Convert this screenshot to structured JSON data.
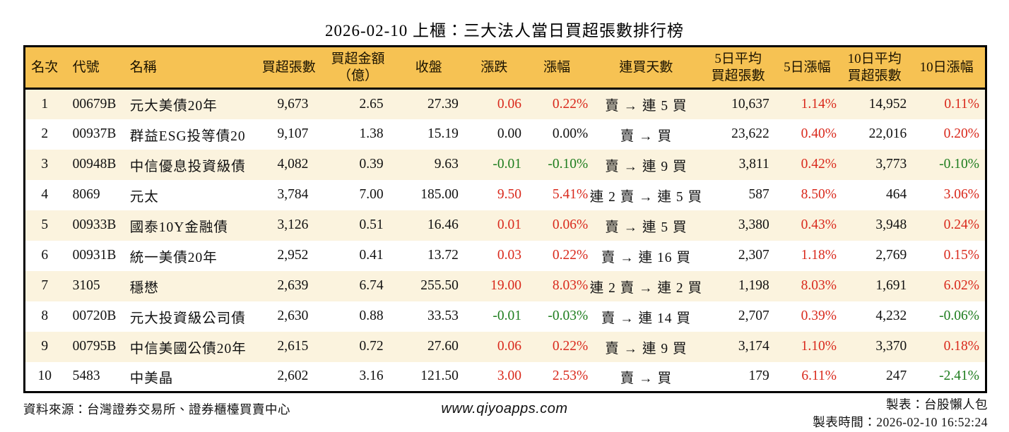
{
  "title": "2026-02-10 上櫃：三大法人當日買超張數排行榜",
  "colors": {
    "header_bg": "#F6C253",
    "row_alt_bg": "#FBF3DE",
    "up_red": "#D9291C",
    "down_green": "#1E7D1E",
    "text": "#111111",
    "border": "#000000"
  },
  "table": {
    "headers": [
      "名次",
      "代號",
      "名稱",
      "買超張數",
      "買超金額\n（億）",
      "收盤",
      "漲跌",
      "漲幅",
      "連買天數",
      "5日平均\n買超張數",
      "5日漲幅",
      "10日平均\n買超張數",
      "10日漲幅"
    ],
    "rows": [
      {
        "rank": "1",
        "code": "00679B",
        "name": "元大美債20年",
        "net_buy": "9,673",
        "amount": "2.65",
        "close": "27.39",
        "change": "0.06",
        "change_pct": "0.22%",
        "streak": "賣 → 連 5 買",
        "avg5": "10,637",
        "pct5": "1.14%",
        "avg10": "14,952",
        "pct10": "0.11%"
      },
      {
        "rank": "2",
        "code": "00937B",
        "name": "群益ESG投等債20",
        "net_buy": "9,107",
        "amount": "1.38",
        "close": "15.19",
        "change": "0.00",
        "change_pct": "0.00%",
        "streak": "賣 → 買",
        "avg5": "23,622",
        "pct5": "0.40%",
        "avg10": "22,016",
        "pct10": "0.20%"
      },
      {
        "rank": "3",
        "code": "00948B",
        "name": "中信優息投資級債",
        "net_buy": "4,082",
        "amount": "0.39",
        "close": "9.63",
        "change": "-0.01",
        "change_pct": "-0.10%",
        "streak": "賣 → 連 9 買",
        "avg5": "3,811",
        "pct5": "0.42%",
        "avg10": "3,773",
        "pct10": "-0.10%"
      },
      {
        "rank": "4",
        "code": "8069",
        "name": "元太",
        "net_buy": "3,784",
        "amount": "7.00",
        "close": "185.00",
        "change": "9.50",
        "change_pct": "5.41%",
        "streak": "連 2 賣 → 連 5 買",
        "avg5": "587",
        "pct5": "8.50%",
        "avg10": "464",
        "pct10": "3.06%"
      },
      {
        "rank": "5",
        "code": "00933B",
        "name": "國泰10Y金融債",
        "net_buy": "3,126",
        "amount": "0.51",
        "close": "16.46",
        "change": "0.01",
        "change_pct": "0.06%",
        "streak": "賣 → 連 5 買",
        "avg5": "3,380",
        "pct5": "0.43%",
        "avg10": "3,948",
        "pct10": "0.24%"
      },
      {
        "rank": "6",
        "code": "00931B",
        "name": "統一美債20年",
        "net_buy": "2,952",
        "amount": "0.41",
        "close": "13.72",
        "change": "0.03",
        "change_pct": "0.22%",
        "streak": "賣 → 連 16 買",
        "avg5": "2,307",
        "pct5": "1.18%",
        "avg10": "2,769",
        "pct10": "0.15%"
      },
      {
        "rank": "7",
        "code": "3105",
        "name": "穩懋",
        "net_buy": "2,639",
        "amount": "6.74",
        "close": "255.50",
        "change": "19.00",
        "change_pct": "8.03%",
        "streak": "連 2 賣 → 連 2 買",
        "avg5": "1,198",
        "pct5": "8.03%",
        "avg10": "1,691",
        "pct10": "6.02%"
      },
      {
        "rank": "8",
        "code": "00720B",
        "name": "元大投資級公司債",
        "net_buy": "2,630",
        "amount": "0.88",
        "close": "33.53",
        "change": "-0.01",
        "change_pct": "-0.03%",
        "streak": "賣 → 連 14 買",
        "avg5": "2,707",
        "pct5": "0.39%",
        "avg10": "4,232",
        "pct10": "-0.06%"
      },
      {
        "rank": "9",
        "code": "00795B",
        "name": "中信美國公債20年",
        "net_buy": "2,615",
        "amount": "0.72",
        "close": "27.60",
        "change": "0.06",
        "change_pct": "0.22%",
        "streak": "賣 → 連 9 買",
        "avg5": "3,174",
        "pct5": "1.10%",
        "avg10": "3,370",
        "pct10": "0.18%"
      },
      {
        "rank": "10",
        "code": "5483",
        "name": "中美晶",
        "net_buy": "2,602",
        "amount": "3.16",
        "close": "121.50",
        "change": "3.00",
        "change_pct": "2.53%",
        "streak": "賣 → 買",
        "avg5": "179",
        "pct5": "6.11%",
        "avg10": "247",
        "pct10": "-2.41%"
      }
    ]
  },
  "footer": {
    "source": "資料來源：台灣證券交易所、證券櫃檯買賣中心",
    "website": "www.qiyoapps.com",
    "made_by": "製表：台股懶人包",
    "made_time": "製表時間：2026-02-10 16:52:24"
  }
}
